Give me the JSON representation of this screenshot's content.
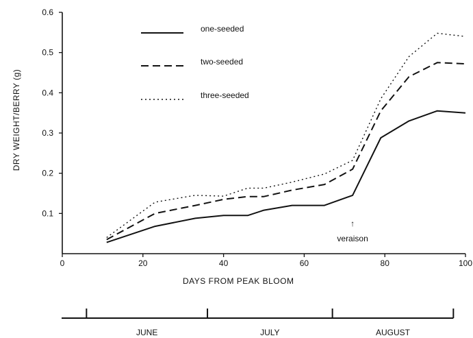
{
  "chart_data": {
    "type": "line",
    "xlabel": "DAYS FROM PEAK BLOOM",
    "ylabel": "DRY WEIGHT/BERRY   (g)",
    "xlim": [
      0,
      100
    ],
    "ylim": [
      0,
      0.6
    ],
    "x_ticks": [
      "0",
      "20",
      "40",
      "60",
      "80",
      "100"
    ],
    "y_ticks": [
      "0.1",
      "0.2",
      "0.3",
      "0.4",
      "0.5",
      "0.6"
    ],
    "legend_position": "top-left",
    "series": [
      {
        "name": "one-seeded",
        "style": "solid",
        "x": [
          11,
          23,
          33,
          40,
          46,
          50,
          57,
          65,
          72,
          79,
          86,
          93,
          100
        ],
        "y": [
          0.028,
          0.068,
          0.088,
          0.095,
          0.095,
          0.108,
          0.12,
          0.12,
          0.145,
          0.288,
          0.33,
          0.355,
          0.35
        ]
      },
      {
        "name": "two-seeded",
        "style": "dashed",
        "x": [
          11,
          23,
          33,
          40,
          46,
          50,
          57,
          65,
          72,
          79,
          86,
          93,
          100
        ],
        "y": [
          0.035,
          0.1,
          0.12,
          0.135,
          0.142,
          0.142,
          0.158,
          0.172,
          0.21,
          0.355,
          0.44,
          0.475,
          0.472
        ]
      },
      {
        "name": "three-seeded",
        "style": "dotted",
        "x": [
          11,
          23,
          33,
          40,
          46,
          50,
          57,
          65,
          72,
          79,
          86,
          93,
          100
        ],
        "y": [
          0.04,
          0.128,
          0.145,
          0.143,
          0.163,
          0.163,
          0.178,
          0.198,
          0.232,
          0.385,
          0.49,
          0.548,
          0.54
        ]
      }
    ],
    "annotation": {
      "text": "veraison",
      "arrow": "↑",
      "x": 72,
      "y": 0.145
    },
    "months": {
      "labels": [
        "JUNE",
        "JULY",
        "AUGUST"
      ],
      "boundaries_days": [
        6,
        36,
        67,
        97
      ]
    }
  }
}
